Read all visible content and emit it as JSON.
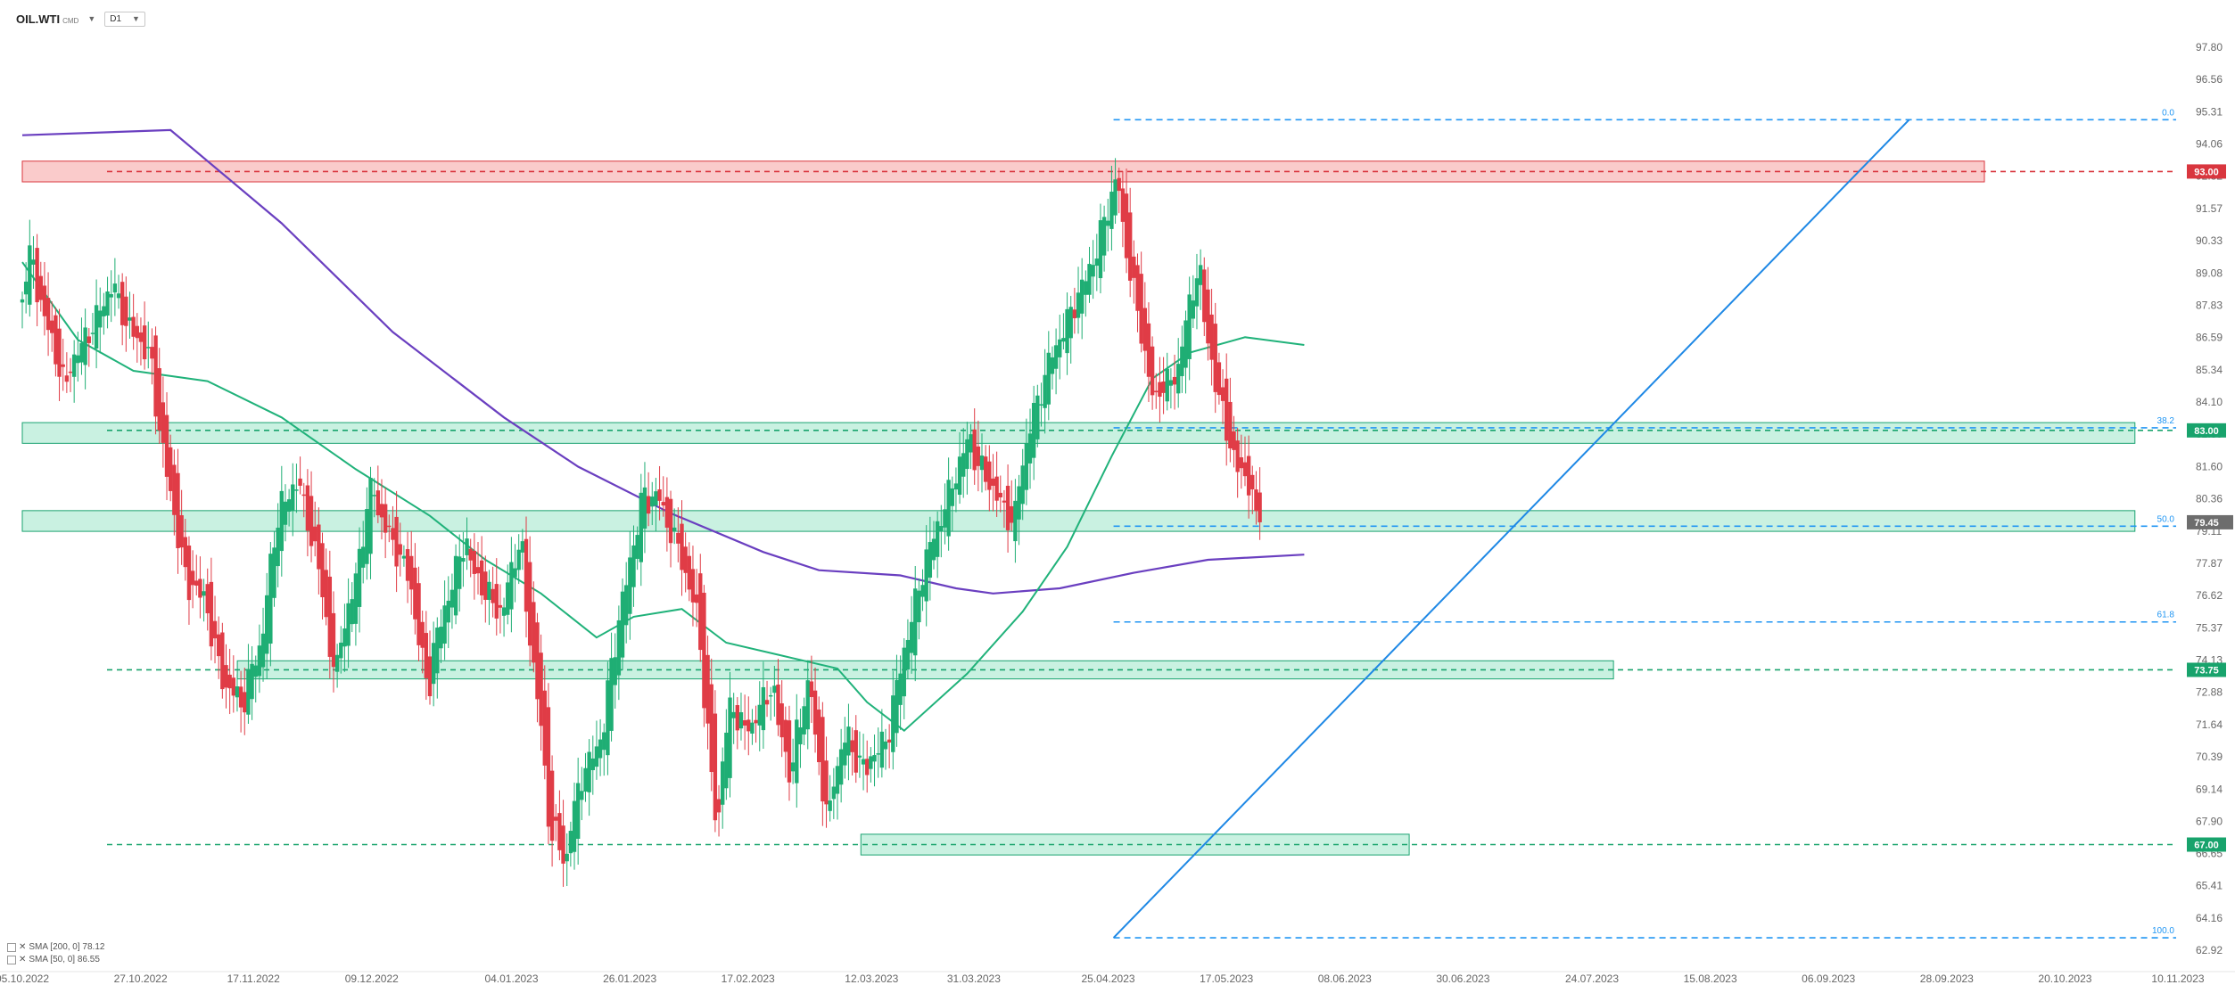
{
  "header": {
    "symbol": "OIL.WTI",
    "symbol_suffix": "CMD",
    "timeframe": "D1"
  },
  "indicators": [
    {
      "label": "SMA [200, 0] 78.12",
      "color": "#6a3fc0"
    },
    {
      "label": "SMA [50, 0] 86.55",
      "color": "#20b27a"
    }
  ],
  "chart_data": {
    "type": "candlestick",
    "symbol": "OIL.WTI",
    "timeframe": "D1",
    "y_range": [
      62.92,
      97.8
    ],
    "y_ticks": [
      "97.80",
      "96.56",
      "95.31",
      "94.06",
      "92.82",
      "91.57",
      "90.33",
      "89.08",
      "87.83",
      "86.59",
      "85.34",
      "84.10",
      "82.85",
      "81.60",
      "80.36",
      "79.11",
      "77.87",
      "76.62",
      "75.37",
      "74.13",
      "72.88",
      "71.64",
      "70.39",
      "69.14",
      "67.90",
      "66.65",
      "65.41",
      "64.16",
      "62.92"
    ],
    "x_ticks": [
      "05.10.2022",
      "27.10.2022",
      "17.11.2022",
      "09.12.2022",
      "04.01.2023",
      "26.01.2023",
      "17.02.2023",
      "12.03.2023",
      "31.03.2023",
      "25.04.2023",
      "17.05.2023",
      "08.06.2023",
      "30.06.2023",
      "24.07.2023",
      "15.08.2023",
      "06.09.2023",
      "28.09.2023",
      "20.10.2023",
      "10.11.2023"
    ],
    "price_labels": [
      {
        "value": 93.0,
        "text": "93.00",
        "color": "#d9363e"
      },
      {
        "value": 83.0,
        "text": "83.00",
        "color": "#18a36c"
      },
      {
        "value": 79.45,
        "text": "79.45",
        "color": "#6d6d6d"
      },
      {
        "value": 73.75,
        "text": "73.75",
        "color": "#18a36c"
      },
      {
        "value": 67.0,
        "text": "67.00",
        "color": "#18a36c"
      }
    ],
    "fib_levels": [
      {
        "ratio": "0.0",
        "value": 95.0
      },
      {
        "ratio": "38.2",
        "value": 83.1
      },
      {
        "ratio": "50.0",
        "value": 79.3
      },
      {
        "ratio": "61.8",
        "value": 75.6
      },
      {
        "ratio": "100.0",
        "value": 63.4
      }
    ],
    "zones": [
      {
        "color": "red",
        "from": "05.10.2022",
        "to": "05.10.2023",
        "low": 92.6,
        "high": 93.4
      },
      {
        "color": "green",
        "from": "05.10.2022",
        "to": "02.11.2023",
        "low": 82.5,
        "high": 83.3
      },
      {
        "color": "green",
        "from": "05.10.2022",
        "to": "02.11.2023",
        "low": 79.1,
        "high": 79.9
      },
      {
        "color": "green",
        "from": "14.11.2022",
        "to": "28.07.2023",
        "low": 73.4,
        "high": 74.1
      },
      {
        "color": "green",
        "from": "10.03.2023",
        "to": "20.06.2023",
        "low": 66.6,
        "high": 67.4
      }
    ],
    "trendline": {
      "from": {
        "date": "26.04.2023",
        "value": 63.4
      },
      "to": {
        "date": "21.09.2023",
        "value": 95.0
      }
    },
    "current_price": 79.45
  }
}
